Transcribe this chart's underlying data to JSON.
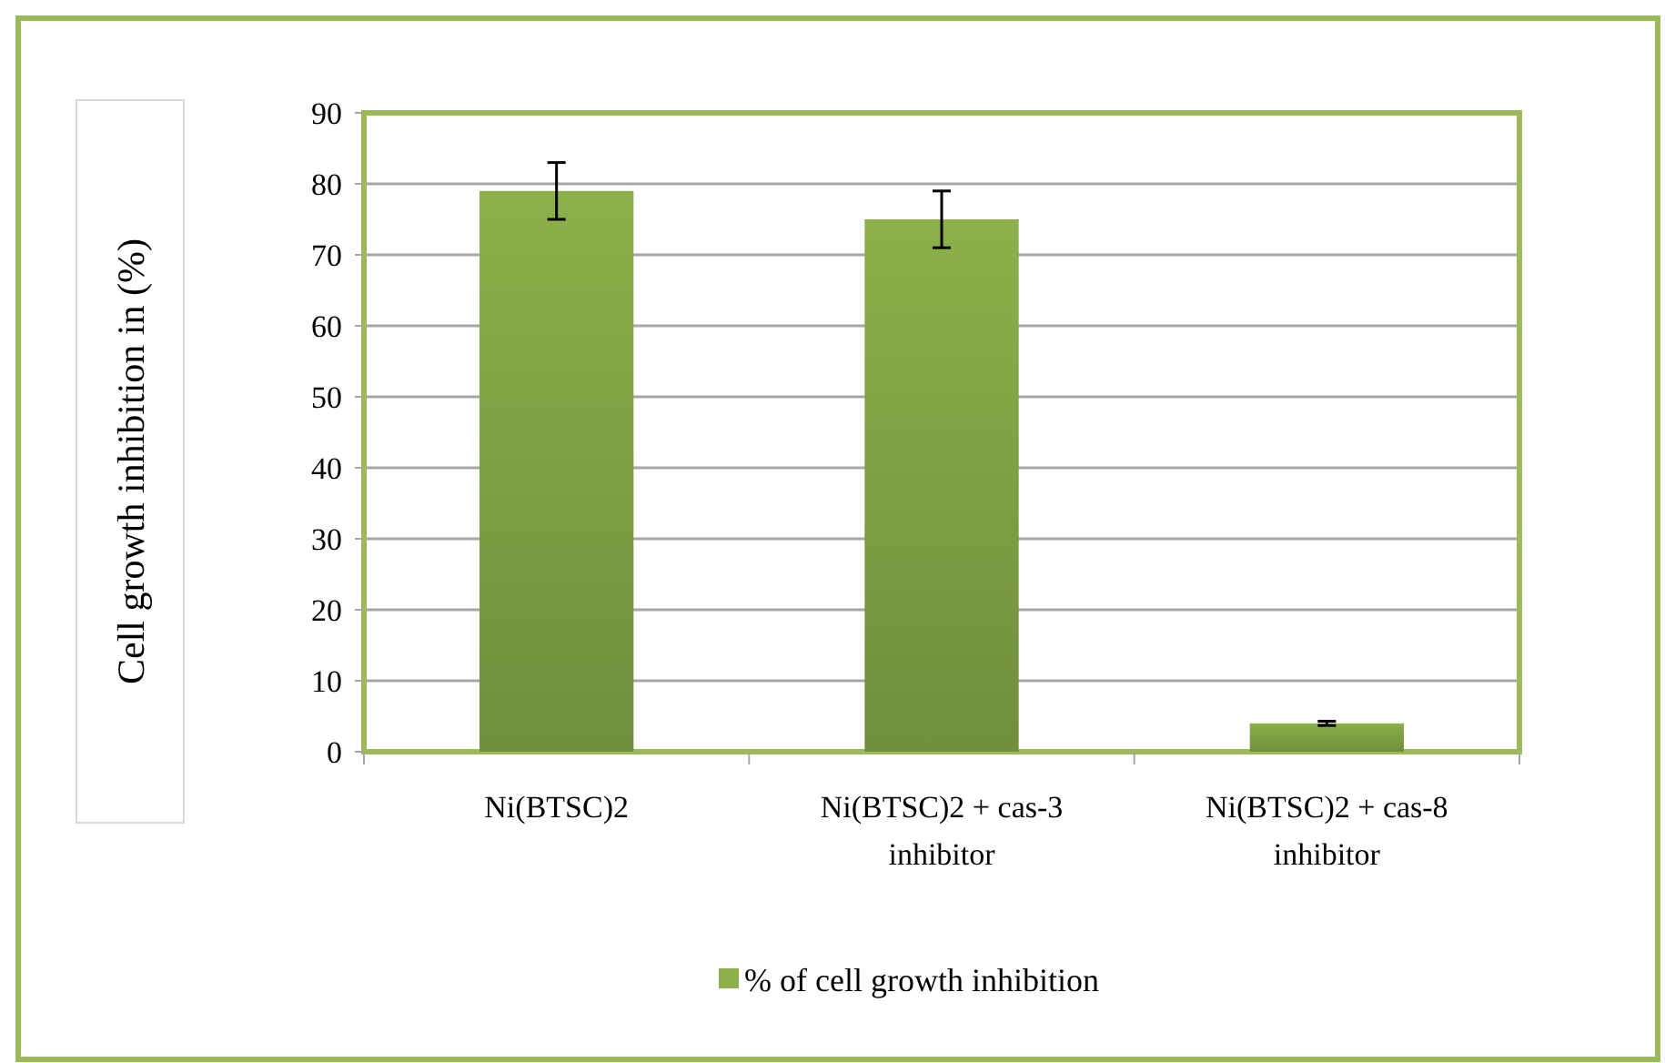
{
  "chart_data": {
    "type": "bar",
    "ylabel": "Cell growth inhibition in (%)",
    "categories": [
      "Ni(BTSC)2",
      "Ni(BTSC)2 + cas-3 inhibitor",
      "Ni(BTSC)2 + cas-8 inhibitor"
    ],
    "series": [
      {
        "name": "% of cell growth inhibition",
        "color": "#8cb04a",
        "values": [
          79,
          75,
          4
        ],
        "errors": [
          4,
          4,
          0.3
        ]
      }
    ],
    "ylim": [
      0,
      90
    ],
    "yticks": [
      0,
      10,
      20,
      30,
      40,
      50,
      60,
      70,
      80,
      90
    ],
    "grid": "y",
    "legend": "bottom"
  }
}
